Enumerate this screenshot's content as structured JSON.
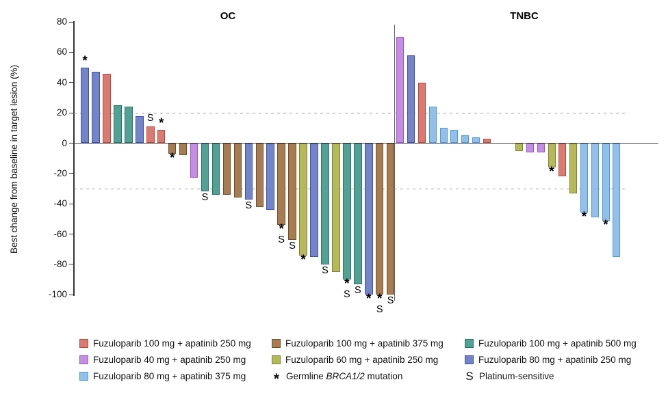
{
  "chart_data": {
    "type": "bar",
    "variant": "waterfall",
    "ylabel": "Best change from baseline in target lesion (%)",
    "ylim": [
      -100,
      80
    ],
    "yticks": [
      80,
      60,
      40,
      20,
      0,
      -20,
      -40,
      -60,
      -80,
      -100
    ],
    "reference_lines": [
      20,
      -30
    ],
    "grid": "off",
    "legend_position": "bottom",
    "groups": {
      "red": {
        "label": "Fuzuloparib 100 mg + apatinib 250 mg",
        "fill": "#DA7A70",
        "border": "#B44A3F"
      },
      "brown": {
        "label": "Fuzuloparib 100 mg + apatinib 375 mg",
        "fill": "#A87C50",
        "border": "#6F4F28"
      },
      "teal": {
        "label": "Fuzuloparib 100 mg + apatinib 500 mg",
        "fill": "#53A094",
        "border": "#27746A"
      },
      "violet": {
        "label": "Fuzuloparib 40 mg + apatinib 250 mg",
        "fill": "#C48FE0",
        "border": "#9C54CE"
      },
      "yellow": {
        "label": "Fuzuloparib 60 mg + apatinib 250 mg",
        "fill": "#B5B958",
        "border": "#7E8230"
      },
      "slate": {
        "label": "Fuzuloparib 80 mg + apatinib 250 mg",
        "fill": "#7384C9",
        "border": "#3C50B4"
      },
      "sky": {
        "label": "Fuzuloparib 80 mg + apatinib 375 mg",
        "fill": "#93C0E9",
        "border": "#4E97DD"
      }
    },
    "marker_meanings": {
      "*": "Germline BRCA1/2 mutation",
      "S": "Platinum-sensitive"
    },
    "panels": [
      {
        "title": "OC",
        "bars": [
          {
            "value": 50,
            "group": "slate",
            "markers": [
              "*"
            ]
          },
          {
            "value": 47,
            "group": "slate"
          },
          {
            "value": 46,
            "group": "red"
          },
          {
            "value": 25,
            "group": "teal"
          },
          {
            "value": 24,
            "group": "teal"
          },
          {
            "value": 18,
            "group": "slate"
          },
          {
            "value": 11,
            "group": "red",
            "markers": [
              "S"
            ]
          },
          {
            "value": 9,
            "group": "red",
            "markers": [
              "*"
            ]
          },
          {
            "value": -7,
            "group": "brown",
            "markers": [
              "*"
            ]
          },
          {
            "value": -8,
            "group": "brown"
          },
          {
            "value": -23,
            "group": "violet"
          },
          {
            "value": -32,
            "group": "teal",
            "markers": [
              "S"
            ]
          },
          {
            "value": -34,
            "group": "teal"
          },
          {
            "value": -34,
            "group": "brown"
          },
          {
            "value": -36,
            "group": "brown"
          },
          {
            "value": -37,
            "group": "slate",
            "markers": [
              "S"
            ]
          },
          {
            "value": -42,
            "group": "brown"
          },
          {
            "value": -44,
            "group": "slate"
          },
          {
            "value": -54,
            "group": "brown",
            "markers": [
              "*",
              "S"
            ]
          },
          {
            "value": -64,
            "group": "brown",
            "markers": [
              "S"
            ]
          },
          {
            "value": -74,
            "group": "yellow",
            "markers": [
              "*"
            ]
          },
          {
            "value": -75,
            "group": "slate"
          },
          {
            "value": -80,
            "group": "teal",
            "markers": [
              "S"
            ]
          },
          {
            "value": -85,
            "group": "yellow"
          },
          {
            "value": -90,
            "group": "teal",
            "markers": [
              "*",
              "S"
            ]
          },
          {
            "value": -93,
            "group": "teal",
            "markers": [
              "S"
            ]
          },
          {
            "value": -100,
            "group": "slate",
            "markers": [
              "*"
            ]
          },
          {
            "value": -100,
            "group": "brown",
            "markers": [
              "*",
              "S"
            ]
          },
          {
            "value": -100,
            "group": "brown",
            "markers": [
              "S"
            ]
          }
        ]
      },
      {
        "title": "TNBC",
        "bars": [
          {
            "value": 70,
            "group": "violet"
          },
          {
            "value": 58,
            "group": "slate"
          },
          {
            "value": 40,
            "group": "red"
          },
          {
            "value": 24,
            "group": "sky"
          },
          {
            "value": 10,
            "group": "sky"
          },
          {
            "value": 9,
            "group": "sky"
          },
          {
            "value": 5,
            "group": "sky"
          },
          {
            "value": 4,
            "group": "sky"
          },
          {
            "value": 3,
            "group": "red"
          },
          {
            "value": -5,
            "group": "yellow",
            "slot": 11
          },
          {
            "value": -6,
            "group": "violet",
            "slot": 12
          },
          {
            "value": -6,
            "group": "violet",
            "slot": 13
          },
          {
            "value": -16,
            "group": "yellow",
            "markers": [
              "*"
            ],
            "slot": 14
          },
          {
            "value": -22,
            "group": "red",
            "slot": 15
          },
          {
            "value": -33,
            "group": "yellow",
            "slot": 16
          },
          {
            "value": -46,
            "group": "sky",
            "markers": [
              "*"
            ],
            "slot": 17
          },
          {
            "value": -49,
            "group": "sky",
            "slot": 18
          },
          {
            "value": -51,
            "group": "sky",
            "markers": [
              "*"
            ],
            "slot": 19
          },
          {
            "value": -75,
            "group": "sky",
            "slot": 20
          }
        ]
      }
    ]
  },
  "legend": {
    "cells": [
      {
        "swatch": "red"
      },
      {
        "swatch": "brown"
      },
      {
        "swatch": "teal"
      },
      {
        "swatch": "violet"
      },
      {
        "swatch": "yellow"
      },
      {
        "swatch": "slate"
      },
      {
        "swatch": "sky"
      },
      {
        "symbol": "*",
        "label_segments": [
          {
            "t": "Germline "
          },
          {
            "t": "BRCA1/2",
            "italic": true
          },
          {
            "t": " mutation"
          }
        ]
      },
      {
        "symbol": "S",
        "label": "Platinum-sensitive"
      }
    ]
  }
}
